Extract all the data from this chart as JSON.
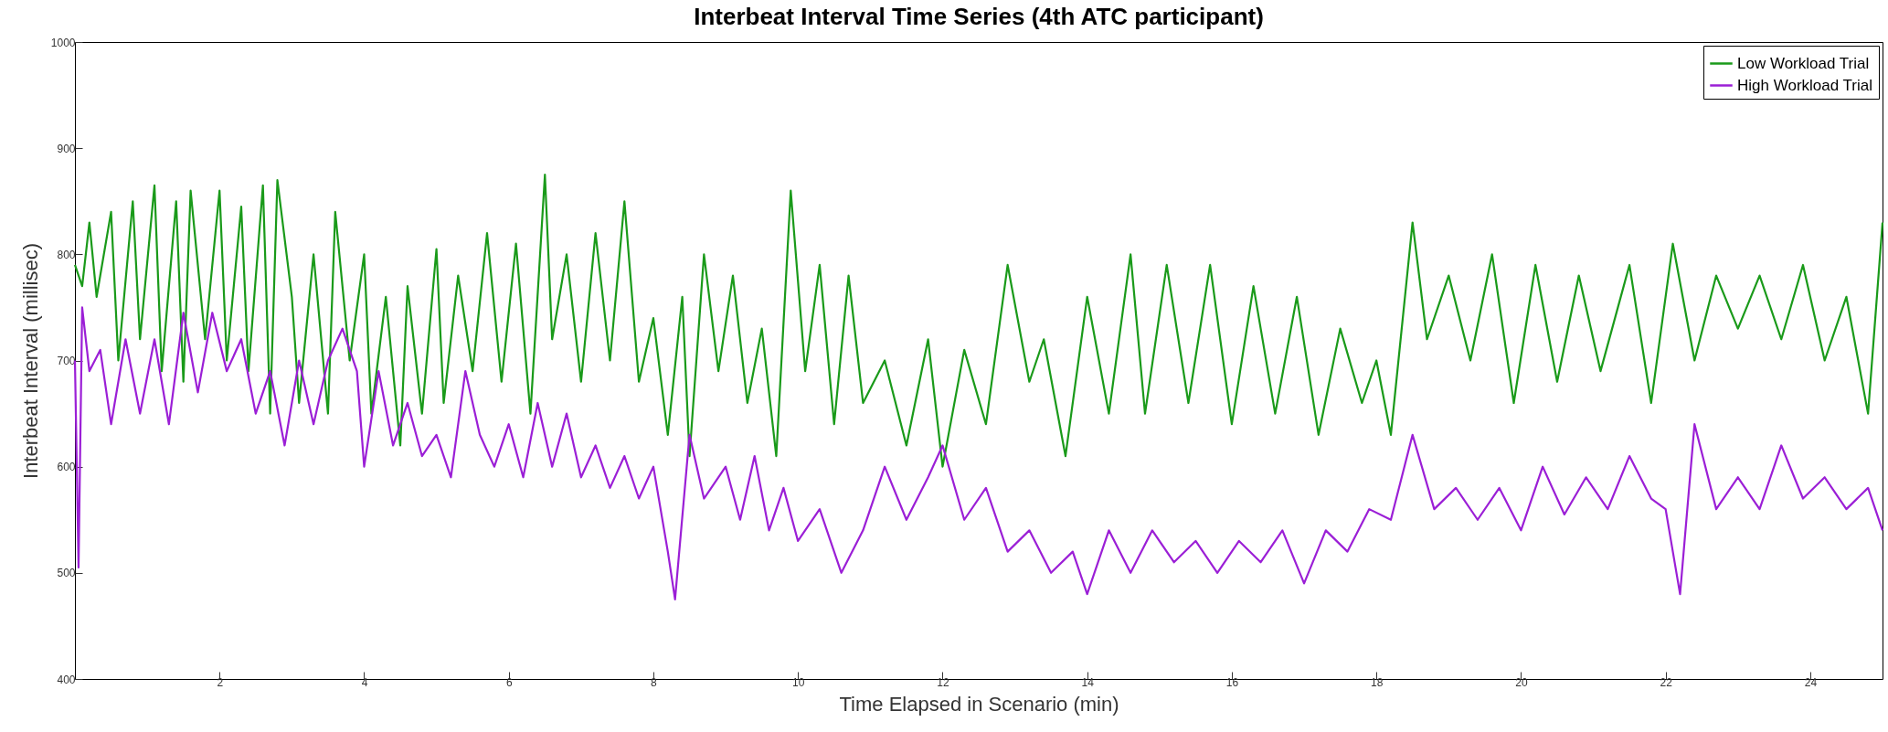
{
  "chart_data": {
    "type": "line",
    "title": "Interbeat Interval Time Series (4th ATC participant)",
    "xlabel": "Time Elapsed in Scenario (min)",
    "ylabel": "Interbeat Interval (millisec)",
    "xlim": [
      0,
      25
    ],
    "xticks": [
      2,
      4,
      6,
      8,
      10,
      12,
      14,
      16,
      18,
      20,
      22,
      24
    ],
    "ylim": [
      400,
      1000
    ],
    "yticks": [
      400,
      500,
      600,
      700,
      800,
      900,
      1000
    ],
    "grid": false,
    "legend": "top right",
    "line_style": "solid",
    "marker": "none",
    "series": [
      {
        "name": "Low Workload Trial",
        "color": "#1a9a1a",
        "x": [
          0,
          0.1,
          0.2,
          0.3,
          0.5,
          0.6,
          0.8,
          0.9,
          1.1,
          1.2,
          1.4,
          1.5,
          1.6,
          1.8,
          2.0,
          2.1,
          2.3,
          2.4,
          2.6,
          2.7,
          2.8,
          3.0,
          3.1,
          3.3,
          3.5,
          3.6,
          3.8,
          4.0,
          4.1,
          4.3,
          4.5,
          4.6,
          4.8,
          5.0,
          5.1,
          5.3,
          5.5,
          5.7,
          5.9,
          6.1,
          6.3,
          6.5,
          6.6,
          6.8,
          7.0,
          7.2,
          7.4,
          7.6,
          7.8,
          8.0,
          8.2,
          8.4,
          8.5,
          8.7,
          8.9,
          9.1,
          9.3,
          9.5,
          9.7,
          9.9,
          10.1,
          10.3,
          10.5,
          10.7,
          10.9,
          11.2,
          11.5,
          11.8,
          12.0,
          12.3,
          12.6,
          12.9,
          13.2,
          13.4,
          13.7,
          14.0,
          14.3,
          14.6,
          14.8,
          15.1,
          15.4,
          15.7,
          16.0,
          16.3,
          16.6,
          16.9,
          17.2,
          17.5,
          17.8,
          18.0,
          18.2,
          18.5,
          18.7,
          19.0,
          19.3,
          19.6,
          19.9,
          20.2,
          20.5,
          20.8,
          21.1,
          21.5,
          21.8,
          22.1,
          22.4,
          22.7,
          23.0,
          23.3,
          23.6,
          23.9,
          24.2,
          24.5,
          24.8,
          25.0
        ],
        "values": [
          790,
          770,
          830,
          760,
          840,
          700,
          850,
          720,
          865,
          690,
          850,
          680,
          860,
          720,
          860,
          700,
          845,
          690,
          865,
          650,
          870,
          760,
          660,
          800,
          650,
          840,
          700,
          800,
          650,
          760,
          620,
          770,
          650,
          805,
          660,
          780,
          690,
          820,
          680,
          810,
          650,
          875,
          720,
          800,
          680,
          820,
          700,
          850,
          680,
          740,
          630,
          760,
          610,
          800,
          690,
          780,
          660,
          730,
          610,
          860,
          690,
          790,
          640,
          780,
          660,
          700,
          620,
          720,
          600,
          710,
          640,
          790,
          680,
          720,
          610,
          760,
          650,
          800,
          650,
          790,
          660,
          790,
          640,
          770,
          650,
          760,
          630,
          730,
          660,
          700,
          630,
          830,
          720,
          780,
          700,
          800,
          660,
          790,
          680,
          780,
          690,
          790,
          660,
          810,
          700,
          780,
          730,
          780,
          720,
          790,
          700,
          760,
          650,
          830
        ]
      },
      {
        "name": "High Workload Trial",
        "color": "#9b1fd6",
        "x": [
          0,
          0.05,
          0.1,
          0.2,
          0.35,
          0.5,
          0.7,
          0.9,
          1.1,
          1.3,
          1.5,
          1.7,
          1.9,
          2.1,
          2.3,
          2.5,
          2.7,
          2.9,
          3.1,
          3.3,
          3.5,
          3.7,
          3.9,
          4.0,
          4.2,
          4.4,
          4.6,
          4.8,
          5.0,
          5.2,
          5.4,
          5.6,
          5.8,
          6.0,
          6.2,
          6.4,
          6.6,
          6.8,
          7.0,
          7.2,
          7.4,
          7.6,
          7.8,
          8.0,
          8.2,
          8.3,
          8.5,
          8.7,
          9.0,
          9.2,
          9.4,
          9.6,
          9.8,
          10.0,
          10.3,
          10.6,
          10.9,
          11.2,
          11.5,
          11.8,
          12.0,
          12.3,
          12.6,
          12.9,
          13.2,
          13.5,
          13.8,
          14.0,
          14.3,
          14.6,
          14.9,
          15.2,
          15.5,
          15.8,
          16.1,
          16.4,
          16.7,
          17.0,
          17.3,
          17.6,
          17.9,
          18.2,
          18.5,
          18.8,
          19.1,
          19.4,
          19.7,
          20.0,
          20.3,
          20.6,
          20.9,
          21.2,
          21.5,
          21.8,
          22.0,
          22.2,
          22.4,
          22.7,
          23.0,
          23.3,
          23.6,
          23.9,
          24.2,
          24.5,
          24.8,
          25.0
        ],
        "values": [
          700,
          505,
          750,
          690,
          710,
          640,
          720,
          650,
          720,
          640,
          745,
          670,
          745,
          690,
          720,
          650,
          690,
          620,
          700,
          640,
          700,
          730,
          690,
          600,
          690,
          620,
          660,
          610,
          630,
          590,
          690,
          630,
          600,
          640,
          590,
          660,
          600,
          650,
          590,
          620,
          580,
          610,
          570,
          600,
          520,
          475,
          630,
          570,
          600,
          550,
          610,
          540,
          580,
          530,
          560,
          500,
          540,
          600,
          550,
          590,
          620,
          550,
          580,
          520,
          540,
          500,
          520,
          480,
          540,
          500,
          540,
          510,
          530,
          500,
          530,
          510,
          540,
          490,
          540,
          520,
          560,
          550,
          630,
          560,
          580,
          550,
          580,
          540,
          600,
          555,
          590,
          560,
          610,
          570,
          560,
          480,
          640,
          560,
          590,
          560,
          620,
          570,
          590,
          560,
          580,
          540
        ]
      }
    ]
  }
}
